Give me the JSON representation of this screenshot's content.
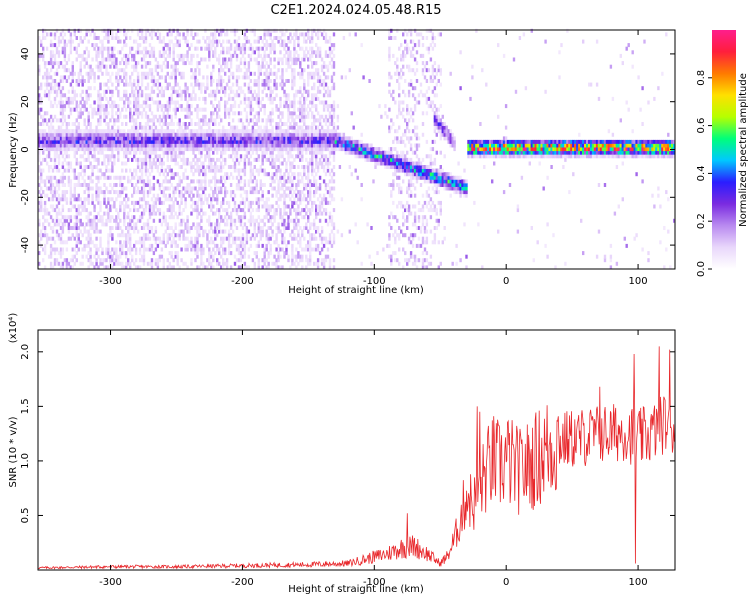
{
  "title": "C2E1.2024.024.05.48.R15",
  "chart_data": [
    {
      "type": "heatmap",
      "xlabel": "Height of straight line (km)",
      "ylabel": "Frequency (Hz)",
      "xlim": [
        -355,
        128
      ],
      "ylim": [
        -50,
        50
      ],
      "xticks": [
        -300,
        -200,
        -100,
        0,
        100
      ],
      "yticks": [
        -40,
        -20,
        0,
        20,
        40
      ],
      "colorbar": {
        "label": "Normalized spectral amplitude",
        "range": [
          0.0,
          1.0
        ],
        "ticks": [
          0.0,
          0.2,
          0.4,
          0.6,
          0.8
        ],
        "colors": [
          "#ffffff",
          "#e9d7fb",
          "#b98af0",
          "#7a2be0",
          "#2a1dff",
          "#00c8ff",
          "#00ff7a",
          "#b6ff00",
          "#ffe000",
          "#ff7a00",
          "#ff1e3c",
          "#ff1e8c"
        ]
      },
      "features": [
        {
          "name": "main band",
          "x_range": [
            -355,
            -130
          ],
          "freq_center": 3,
          "freq_halfwidth": 5,
          "amplitude": 0.3
        },
        {
          "name": "descending band",
          "x_range": [
            -130,
            -30
          ],
          "freq_start": 3,
          "freq_end": -17,
          "amplitude": 0.45
        },
        {
          "name": "upper branch",
          "x_range": [
            -55,
            -40
          ],
          "freq_start": 12,
          "freq_end": 2,
          "amplitude": 0.3
        },
        {
          "name": "stable band",
          "x_range": [
            -30,
            128
          ],
          "freq_center": 0,
          "freq_halfwidth": 4,
          "amplitude": 0.8
        }
      ]
    },
    {
      "type": "line",
      "xlabel": "Height of straight line (km)",
      "ylabel": "SNR (10 * v/v)",
      "yscale_label": "(x10⁴)",
      "xlim": [
        -355,
        128
      ],
      "ylim": [
        0,
        2.2
      ],
      "xticks": [
        -300,
        -200,
        -100,
        0,
        100
      ],
      "yticks": [
        0.5,
        1.0,
        1.5,
        2.0
      ],
      "color": "#e8262a",
      "x": [
        -355,
        -300,
        -250,
        -200,
        -150,
        -120,
        -100,
        -90,
        -80,
        -70,
        -60,
        -50,
        -45,
        -40,
        -35,
        -30,
        -25,
        -20,
        -15,
        -10,
        -5,
        0,
        10,
        20,
        30,
        40,
        50,
        60,
        70,
        80,
        90,
        100,
        110,
        120,
        128
      ],
      "y": [
        0.02,
        0.03,
        0.03,
        0.04,
        0.05,
        0.06,
        0.12,
        0.15,
        0.2,
        0.22,
        0.15,
        0.06,
        0.12,
        0.25,
        0.45,
        0.7,
        0.6,
        0.75,
        0.9,
        1.0,
        0.95,
        1.02,
        0.9,
        0.98,
        1.1,
        1.18,
        1.2,
        1.22,
        1.25,
        1.25,
        1.28,
        1.2,
        1.25,
        1.35,
        1.3
      ],
      "peaks": [
        {
          "x": 71,
          "y": 1.68
        },
        {
          "x": 97,
          "y": 1.98
        },
        {
          "x": 116,
          "y": 2.05
        },
        {
          "x": 124,
          "y": 2.02
        },
        {
          "x": -22,
          "y": 1.5
        },
        {
          "x": -20,
          "y": 1.45
        },
        {
          "x": -75,
          "y": 0.52
        },
        {
          "x": 98,
          "y": 0.06
        }
      ]
    }
  ]
}
